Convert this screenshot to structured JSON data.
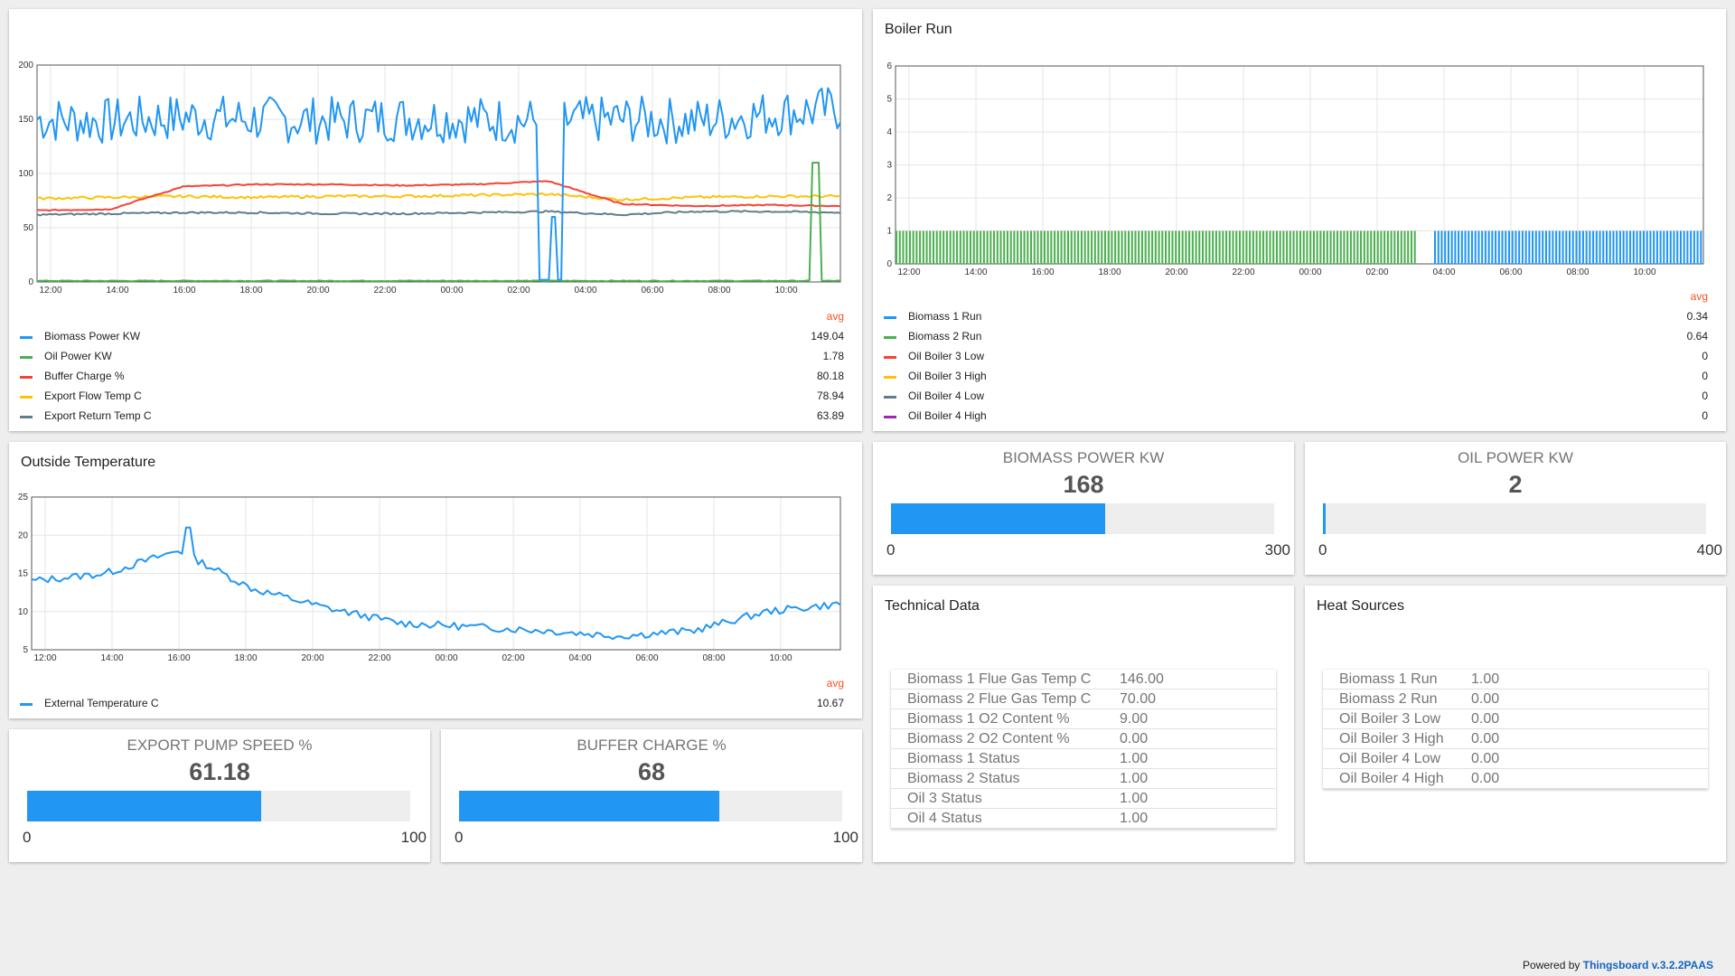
{
  "charts": {
    "power": {
      "title": "",
      "legend_header": "avg",
      "x_ticks": [
        "12:00",
        "14:00",
        "16:00",
        "18:00",
        "20:00",
        "22:00",
        "00:00",
        "02:00",
        "04:00",
        "06:00",
        "08:00",
        "10:00"
      ],
      "y_ticks": [
        "0",
        "50",
        "100",
        "150",
        "200"
      ],
      "series": [
        {
          "name": "Biomass Power KW",
          "color": "#2196f3",
          "avg": "149.04"
        },
        {
          "name": "Oil Power KW",
          "color": "#4caf50",
          "avg": "1.78"
        },
        {
          "name": "Buffer Charge %",
          "color": "#f44336",
          "avg": "80.18"
        },
        {
          "name": "Export Flow Temp C",
          "color": "#ffc107",
          "avg": "78.94"
        },
        {
          "name": "Export Return Temp C",
          "color": "#607d8b",
          "avg": "63.89"
        }
      ]
    },
    "boiler": {
      "title": "Boiler Run",
      "legend_header": "avg",
      "x_ticks": [
        "12:00",
        "14:00",
        "16:00",
        "18:00",
        "20:00",
        "22:00",
        "00:00",
        "02:00",
        "04:00",
        "06:00",
        "08:00",
        "10:00"
      ],
      "y_ticks": [
        "0",
        "1",
        "2",
        "3",
        "4",
        "5",
        "6"
      ],
      "series": [
        {
          "name": "Biomass 1 Run",
          "color": "#2196f3",
          "avg": "0.34"
        },
        {
          "name": "Biomass 2 Run",
          "color": "#4caf50",
          "avg": "0.64"
        },
        {
          "name": "Oil Boiler 3 Low",
          "color": "#f44336",
          "avg": "0"
        },
        {
          "name": "Oil Boiler 3 High",
          "color": "#ffc107",
          "avg": "0"
        },
        {
          "name": "Oil Boiler 4 Low",
          "color": "#607d8b",
          "avg": "0"
        },
        {
          "name": "Oil Boiler 4 High",
          "color": "#9c27b0",
          "avg": "0"
        }
      ]
    },
    "outside": {
      "title": "Outside Temperature",
      "legend_header": "avg",
      "x_ticks": [
        "12:00",
        "14:00",
        "16:00",
        "18:00",
        "20:00",
        "22:00",
        "00:00",
        "02:00",
        "04:00",
        "06:00",
        "08:00",
        "10:00"
      ],
      "y_ticks": [
        "5",
        "10",
        "15",
        "20",
        "25"
      ],
      "series": [
        {
          "name": "External Temperature C",
          "color": "#2196f3",
          "avg": "10.67"
        }
      ]
    }
  },
  "chart_data": [
    {
      "type": "line",
      "title": "",
      "x": [
        "12:00",
        "14:00",
        "16:00",
        "18:00",
        "20:00",
        "22:00",
        "00:00",
        "02:00",
        "04:00",
        "06:00",
        "08:00",
        "10:00"
      ],
      "ylim": [
        0,
        200
      ],
      "series": [
        {
          "name": "Biomass Power KW",
          "values": [
            150,
            148,
            152,
            150,
            149,
            151,
            150,
            148,
            150,
            148,
            155,
            160
          ]
        },
        {
          "name": "Oil Power KW",
          "values": [
            1,
            1,
            1,
            1,
            1,
            1,
            1,
            1,
            1,
            1,
            1,
            1
          ]
        },
        {
          "name": "Buffer Charge %",
          "values": [
            66,
            67,
            88,
            90,
            90,
            89,
            90,
            93,
            72,
            70,
            71,
            70
          ]
        },
        {
          "name": "Export Flow Temp C",
          "values": [
            77,
            78,
            79,
            78,
            79,
            79,
            80,
            81,
            76,
            78,
            79,
            79
          ]
        },
        {
          "name": "Export Return Temp C",
          "values": [
            62,
            63,
            64,
            64,
            63,
            63,
            64,
            65,
            62,
            65,
            65,
            64
          ]
        }
      ]
    },
    {
      "type": "bar",
      "title": "Boiler Run",
      "x": [
        "12:00",
        "14:00",
        "16:00",
        "18:00",
        "20:00",
        "22:00",
        "00:00",
        "02:00",
        "04:00",
        "06:00",
        "08:00",
        "10:00"
      ],
      "ylim": [
        0,
        6
      ],
      "series": [
        {
          "name": "Biomass 1 Run",
          "values": [
            0,
            0,
            0,
            0,
            0,
            0,
            0,
            0,
            1,
            1,
            1,
            1
          ]
        },
        {
          "name": "Biomass 2 Run",
          "values": [
            1,
            1,
            1,
            1,
            1,
            1,
            1,
            1,
            0,
            0,
            0,
            0
          ]
        },
        {
          "name": "Oil Boiler 3 Low",
          "values": [
            0,
            0,
            0,
            0,
            0,
            0,
            0,
            0,
            0,
            0,
            0,
            0
          ]
        },
        {
          "name": "Oil Boiler 3 High",
          "values": [
            0,
            0,
            0,
            0,
            0,
            0,
            0,
            0,
            0,
            0,
            0,
            0
          ]
        },
        {
          "name": "Oil Boiler 4 Low",
          "values": [
            0,
            0,
            0,
            0,
            0,
            0,
            0,
            0,
            0,
            0,
            0,
            0
          ]
        },
        {
          "name": "Oil Boiler 4 High",
          "values": [
            0,
            0,
            0,
            0,
            0,
            0,
            0,
            0,
            0,
            0,
            0,
            0
          ]
        }
      ]
    },
    {
      "type": "line",
      "title": "Outside Temperature",
      "x": [
        "12:00",
        "14:00",
        "16:00",
        "18:00",
        "20:00",
        "22:00",
        "00:00",
        "02:00",
        "04:00",
        "06:00",
        "08:00",
        "10:00"
      ],
      "ylim": [
        5,
        25
      ],
      "series": [
        {
          "name": "External Temperature C",
          "values": [
            14,
            15,
            18,
            13,
            10.5,
            8.5,
            8,
            7.5,
            6.8,
            7.5,
            10,
            11
          ]
        }
      ]
    }
  ],
  "gauges": {
    "biomass": {
      "title": "BIOMASS POWER KW",
      "value": "168",
      "min": "0",
      "max": "300",
      "fraction": 0.56
    },
    "oil": {
      "title": "OIL POWER KW",
      "value": "2",
      "min": "0",
      "max": "400",
      "fraction": 0.005
    },
    "pump": {
      "title": "EXPORT PUMP SPEED %",
      "value": "61.18",
      "min": "0",
      "max": "100",
      "fraction": 0.6118
    },
    "buffer": {
      "title": "BUFFER CHARGE %",
      "value": "68",
      "min": "0",
      "max": "100",
      "fraction": 0.68
    }
  },
  "technical": {
    "title": "Technical Data",
    "rows": [
      {
        "label": "Biomass 1 Flue Gas Temp C",
        "value": "146.00"
      },
      {
        "label": "Biomass 2 Flue Gas Temp C",
        "value": "70.00"
      },
      {
        "label": "Biomass 1 O2 Content %",
        "value": "9.00"
      },
      {
        "label": "Biomass 2 O2 Content %",
        "value": "0.00"
      },
      {
        "label": "Biomass 1 Status",
        "value": "1.00"
      },
      {
        "label": "Biomass 2 Status",
        "value": "1.00"
      },
      {
        "label": "Oil 3 Status",
        "value": "1.00"
      },
      {
        "label": "Oil 4 Status",
        "value": "1.00"
      }
    ]
  },
  "heat": {
    "title": "Heat Sources",
    "rows": [
      {
        "label": "Biomass 1 Run",
        "value": "1.00"
      },
      {
        "label": "Biomass 2 Run",
        "value": "0.00"
      },
      {
        "label": "Oil Boiler 3 Low",
        "value": "0.00"
      },
      {
        "label": "Oil Boiler 3 High",
        "value": "0.00"
      },
      {
        "label": "Oil Boiler 4 Low",
        "value": "0.00"
      },
      {
        "label": "Oil Boiler 4 High",
        "value": "0.00"
      }
    ]
  },
  "footer": {
    "prefix": "Powered by ",
    "brand": "Thingsboard v.3.2.2PAAS"
  }
}
